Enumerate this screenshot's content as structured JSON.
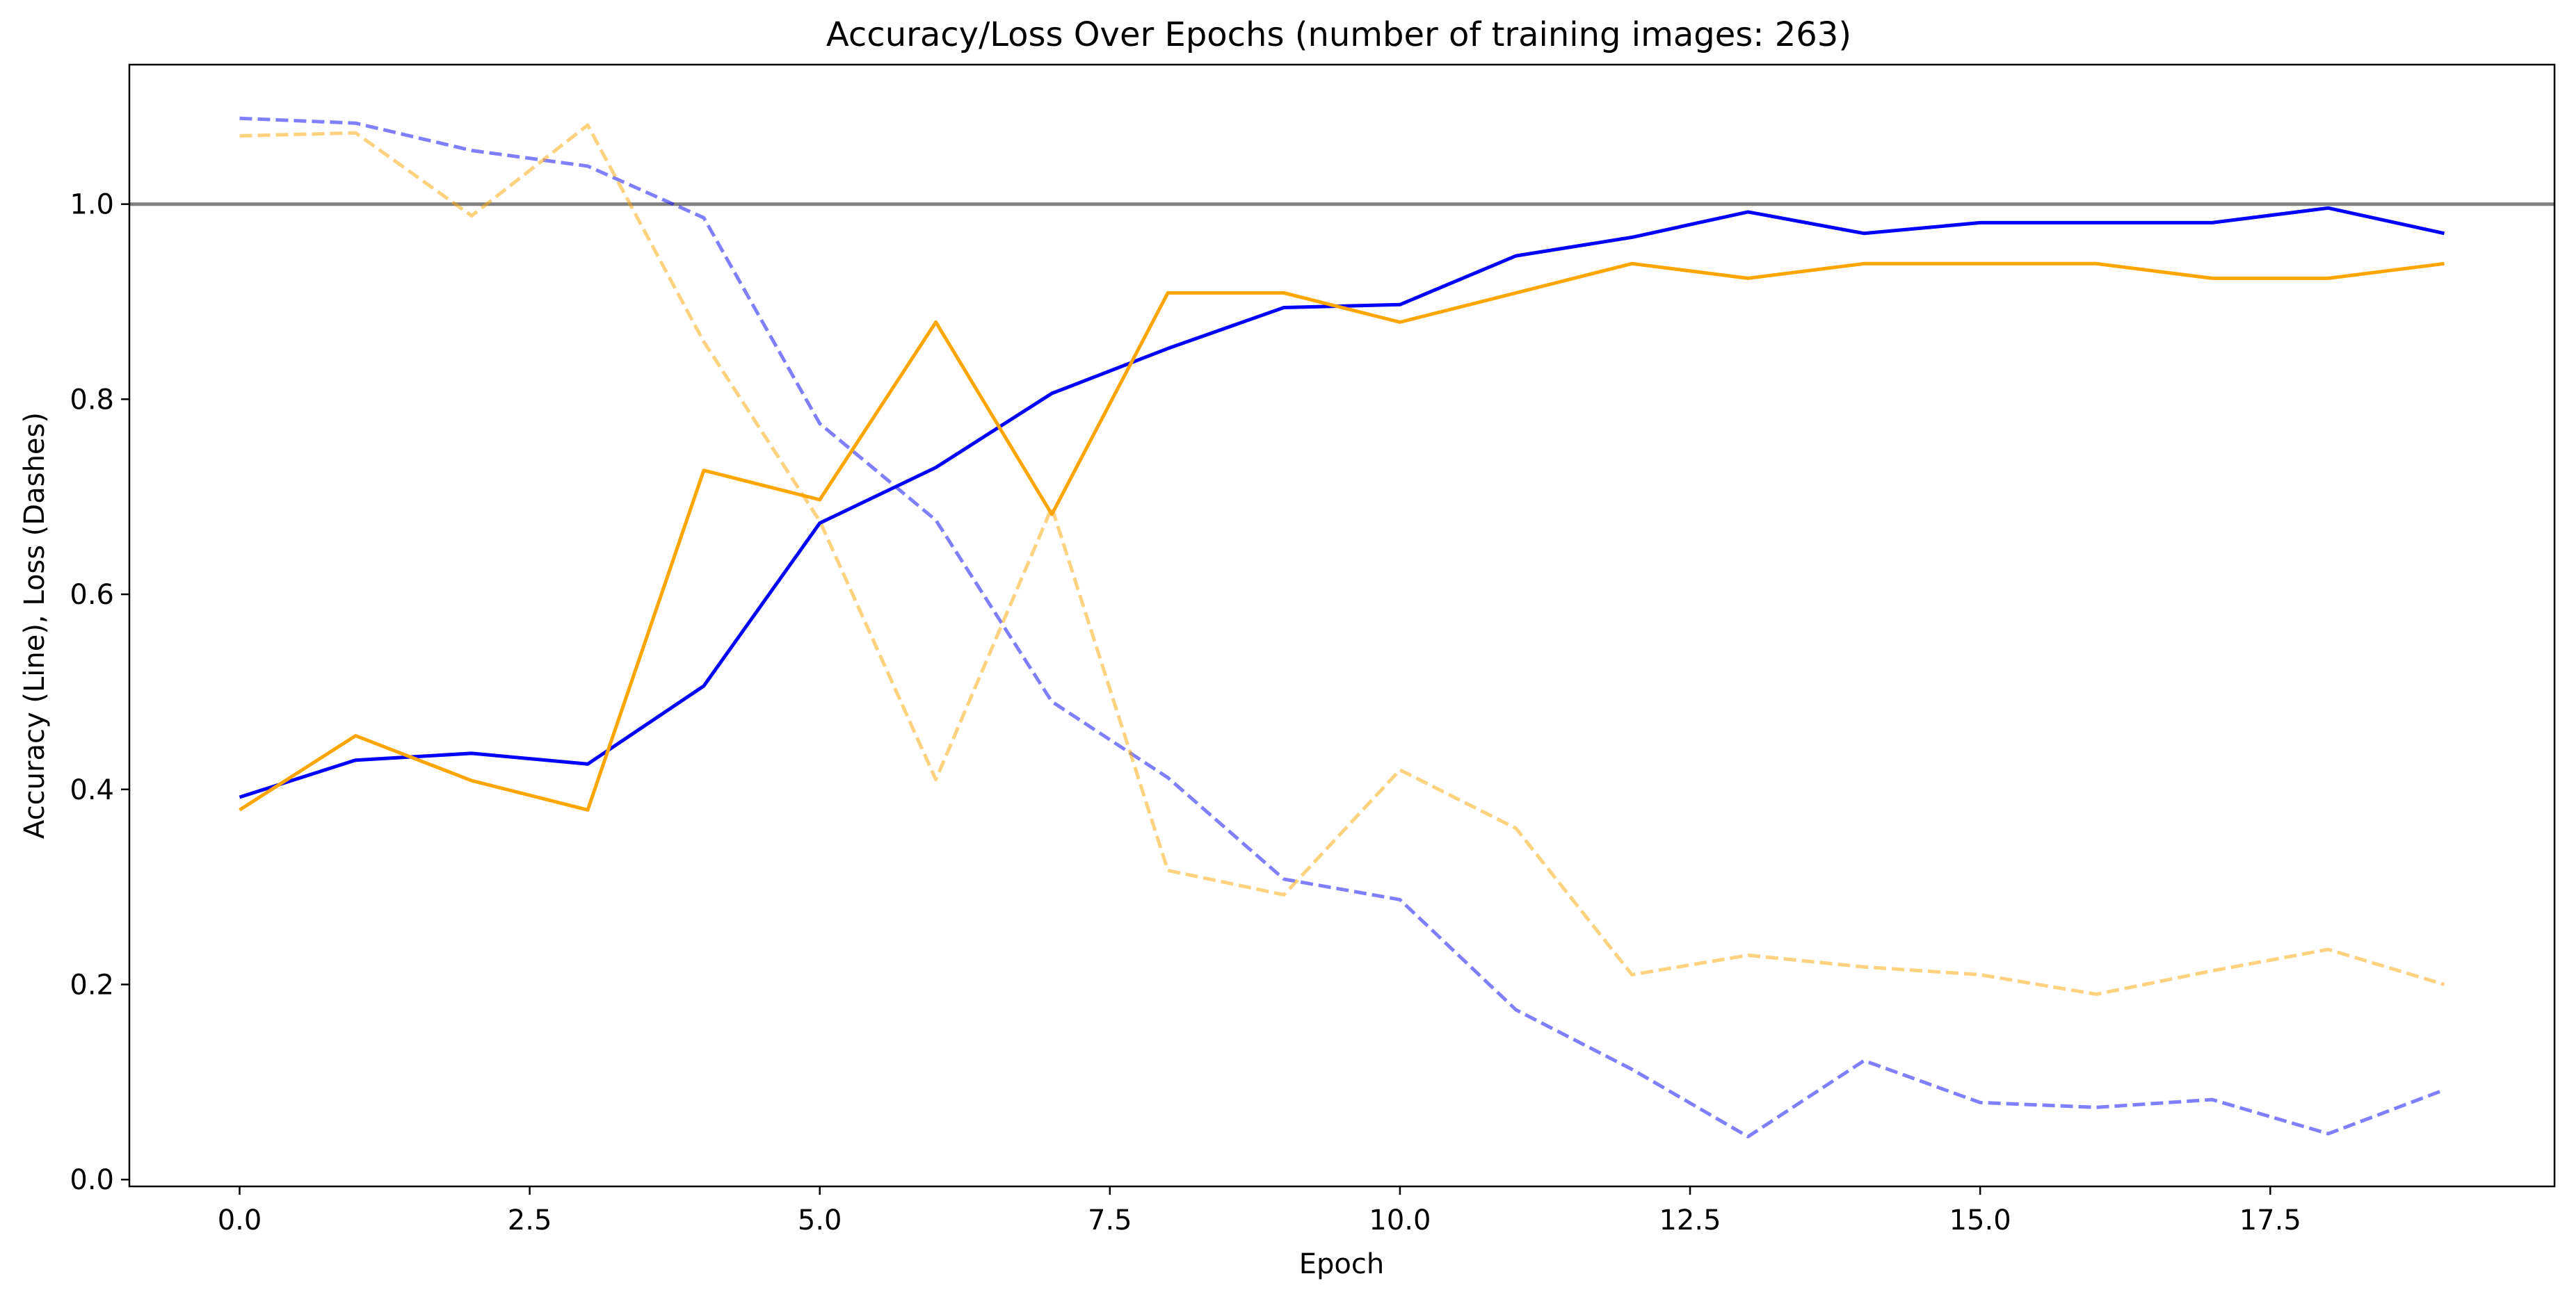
{
  "chart_data": {
    "type": "line",
    "title": "Accuracy/Loss Over Epochs (number of training images: 263)",
    "xlabel": "Epoch",
    "ylabel": "Accuracy (Line), Loss (Dashes)",
    "xlim": [
      -0.95,
      19.95
    ],
    "ylim": [
      -0.007,
      1.143
    ],
    "x_ticks": [
      0.0,
      2.5,
      5.0,
      7.5,
      10.0,
      12.5,
      15.0,
      17.5
    ],
    "x_tick_labels": [
      "0.0",
      "2.5",
      "5.0",
      "7.5",
      "10.0",
      "12.5",
      "15.0",
      "17.5"
    ],
    "y_ticks": [
      0.0,
      0.2,
      0.4,
      0.6,
      0.8,
      1.0
    ],
    "y_tick_labels": [
      "0.0",
      "0.2",
      "0.4",
      "0.6",
      "0.8",
      "1.0"
    ],
    "grid": false,
    "reference_line": {
      "y": 1.0,
      "color": "#808080"
    },
    "x": [
      0,
      1,
      2,
      3,
      4,
      5,
      6,
      7,
      8,
      9,
      10,
      11,
      12,
      13,
      14,
      15,
      16,
      17,
      18,
      19
    ],
    "series": [
      {
        "style": "solid",
        "color": "#0000ff",
        "opacity": 1.0,
        "values": [
          0.392,
          0.43,
          0.437,
          0.426,
          0.506,
          0.673,
          0.73,
          0.806,
          0.852,
          0.894,
          0.897,
          0.947,
          0.966,
          0.992,
          0.97,
          0.981,
          0.981,
          0.981,
          0.996,
          0.97
        ]
      },
      {
        "style": "solid",
        "color": "#ffa500",
        "opacity": 1.0,
        "values": [
          0.379,
          0.455,
          0.409,
          0.379,
          0.727,
          0.697,
          0.879,
          0.682,
          0.909,
          0.909,
          0.879,
          0.909,
          0.939,
          0.924,
          0.939,
          0.939,
          0.939,
          0.924,
          0.924,
          0.939
        ]
      },
      {
        "style": "dashed",
        "color": "#0000ff",
        "opacity": 0.5,
        "values": [
          1.088,
          1.083,
          1.055,
          1.039,
          0.986,
          0.775,
          0.676,
          0.49,
          0.412,
          0.308,
          0.287,
          0.174,
          0.113,
          0.044,
          0.122,
          0.079,
          0.074,
          0.082,
          0.047,
          0.092
        ]
      },
      {
        "style": "dashed",
        "color": "#ffa500",
        "opacity": 0.5,
        "values": [
          1.07,
          1.073,
          0.988,
          1.081,
          0.859,
          0.675,
          0.41,
          0.689,
          0.317,
          0.292,
          0.42,
          0.36,
          0.21,
          0.23,
          0.218,
          0.21,
          0.19,
          0.214,
          0.236,
          0.2
        ]
      }
    ]
  }
}
